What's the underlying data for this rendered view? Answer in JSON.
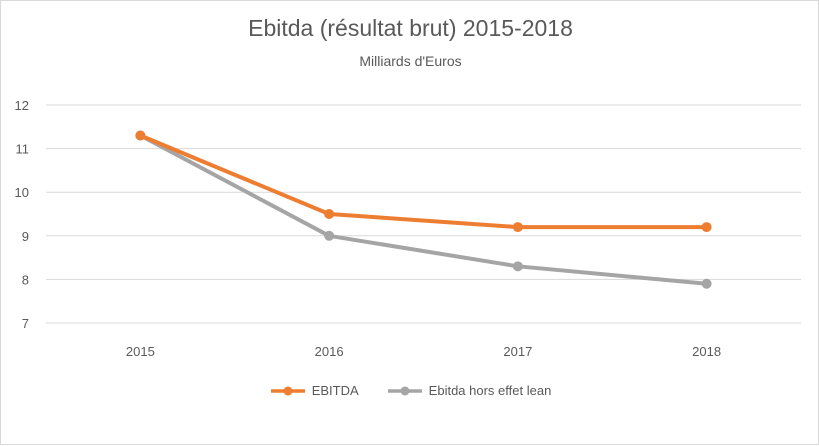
{
  "chart_data": {
    "type": "line",
    "title": "Ebitda (résultat brut) 2015-2018",
    "subtitle": "Milliards d'Euros",
    "categories": [
      "2015",
      "2016",
      "2017",
      "2018"
    ],
    "ylim": [
      7,
      12
    ],
    "yticks": [
      "7",
      "8",
      "9",
      "10",
      "11",
      "12"
    ],
    "grid": true,
    "legend_position": "bottom",
    "series": [
      {
        "name": "EBITDA",
        "values": [
          11.3,
          9.5,
          9.2,
          9.2
        ],
        "color": "#ed7d31"
      },
      {
        "name": "Ebitda hors effet lean",
        "values": [
          11.3,
          9.0,
          8.3,
          7.9
        ],
        "color": "#a5a5a5"
      }
    ]
  }
}
